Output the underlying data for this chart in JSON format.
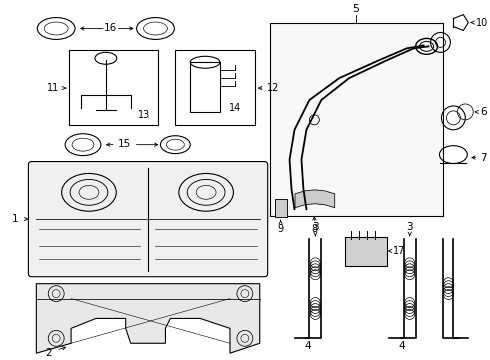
{
  "bg_color": "#ffffff",
  "lc": "#000000",
  "lw": 0.8,
  "fig_w": 4.9,
  "fig_h": 3.6,
  "dpi": 100
}
